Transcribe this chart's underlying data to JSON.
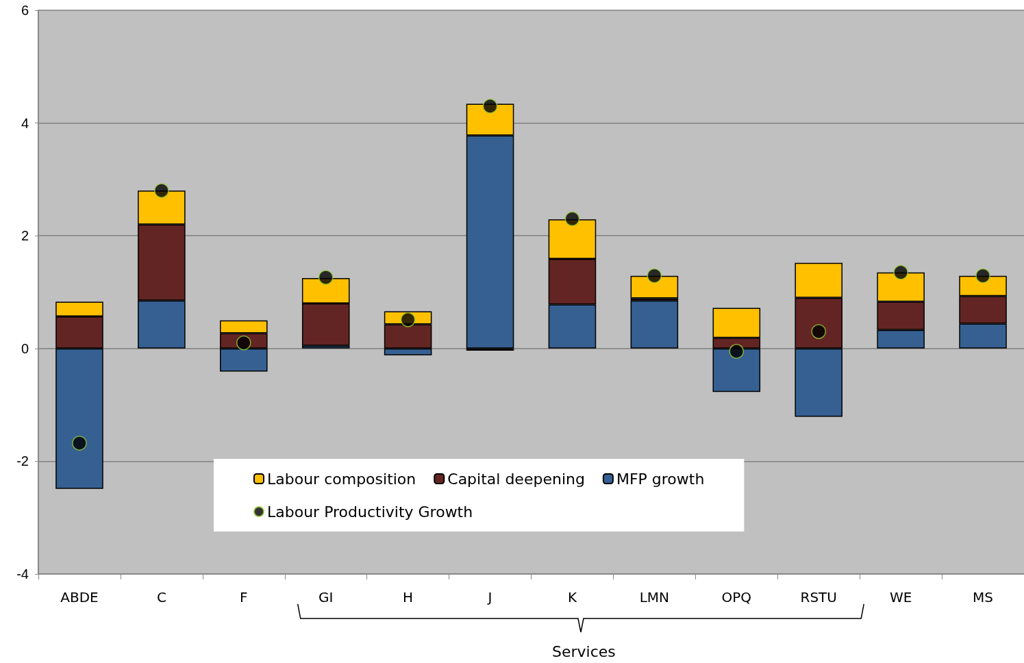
{
  "chart_data": {
    "type": "bar",
    "stacked": true,
    "categories": [
      "ABDE",
      "C",
      "F",
      "GI",
      "H",
      "J",
      "K",
      "LMN",
      "OPQ",
      "RSTU",
      "WE",
      "MS"
    ],
    "series": [
      {
        "name": "MFP growth",
        "color": "#366092",
        "values": [
          -2.49,
          0.85,
          -0.41,
          0.05,
          -0.12,
          3.78,
          0.78,
          0.85,
          -0.77,
          -1.21,
          0.33,
          0.44
        ]
      },
      {
        "name": "Capital deepening",
        "color": "#632523",
        "values": [
          0.57,
          1.35,
          0.27,
          0.75,
          0.43,
          -0.04,
          0.81,
          0.04,
          0.19,
          0.9,
          0.5,
          0.49
        ]
      },
      {
        "name": "Labour composition",
        "color": "#ffc000",
        "values": [
          0.26,
          0.6,
          0.23,
          0.45,
          0.23,
          0.56,
          0.7,
          0.4,
          0.53,
          0.62,
          0.52,
          0.36
        ]
      },
      {
        "name": "Labour Productivity Growth",
        "type": "scatter",
        "color": "#000000",
        "x": [
          "ABDE",
          "C",
          "F",
          "GI",
          "H",
          "J",
          "K",
          "LMN",
          "OPQ",
          "RSTU",
          "WE",
          "MS"
        ],
        "values": [
          -1.68,
          2.8,
          0.1,
          1.26,
          0.51,
          4.3,
          2.3,
          1.29,
          -0.05,
          0.3,
          1.35,
          1.29
        ]
      }
    ],
    "ylim": [
      -4,
      6
    ],
    "yticks": [
      -4,
      -2,
      0,
      2,
      4,
      6
    ],
    "grid": "y",
    "legend": "bottom",
    "marker": "circle",
    "annotations": [
      "Services"
    ]
  }
}
